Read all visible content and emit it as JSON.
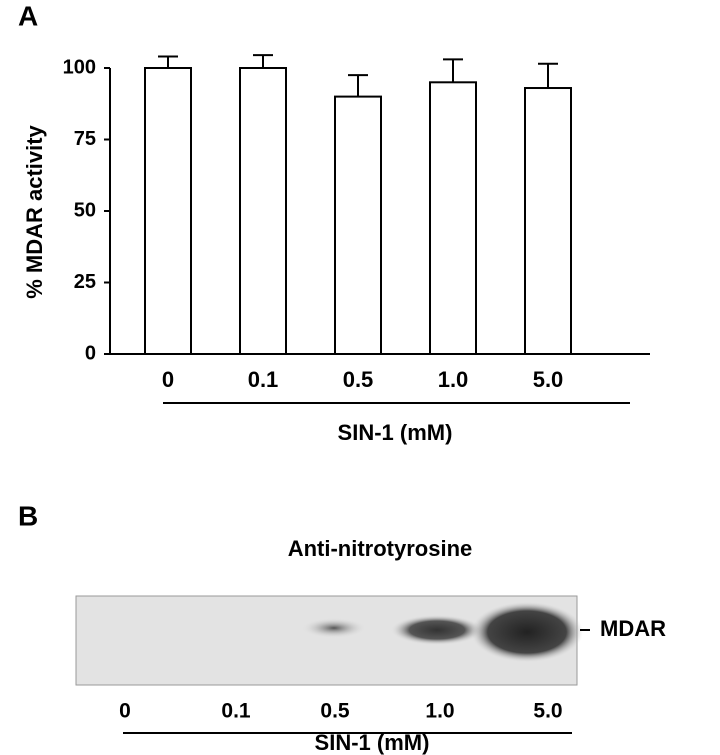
{
  "chart_data": {
    "type": "bar",
    "panel_label": "A",
    "ylabel": "% MDAR activity",
    "xlabel": "SIN-1 (mM)",
    "categories": [
      "0",
      "0.1",
      "0.5",
      "1.0",
      "5.0"
    ],
    "values": [
      100,
      100,
      90,
      95,
      93
    ],
    "errors": [
      4,
      4.5,
      7.5,
      8,
      8.5
    ],
    "color": "#ffffff",
    "ylim": [
      0,
      100
    ],
    "yticks": [
      0,
      25,
      50,
      75,
      100
    ]
  },
  "blot": {
    "panel_label": "B",
    "title": "Anti-nitrotyrosine",
    "band_label": "MDAR",
    "lanes": [
      "0",
      "0.1",
      "0.5",
      "1.0",
      "5.0"
    ],
    "xlabel": "SIN-1 (mM)"
  }
}
